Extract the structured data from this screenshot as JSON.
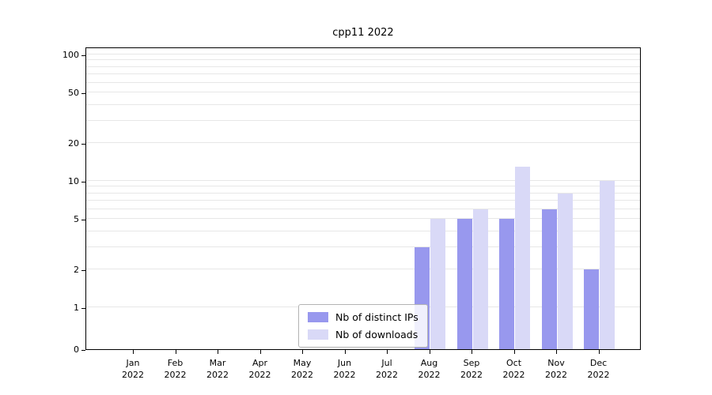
{
  "chart_data": {
    "type": "bar",
    "title": "cpp11 2022",
    "categories": [
      "Jan",
      "Feb",
      "Mar",
      "Apr",
      "May",
      "Jun",
      "Jul",
      "Aug",
      "Sep",
      "Oct",
      "Nov",
      "Dec"
    ],
    "year_label": "2022",
    "series": [
      {
        "name": "Nb of distinct IPs",
        "color": "#9898ee",
        "values": [
          0,
          0,
          0,
          0,
          0,
          0,
          0,
          3,
          5,
          5,
          6,
          2
        ]
      },
      {
        "name": "Nb of downloads",
        "color": "#d9d9f7",
        "values": [
          0,
          0,
          0,
          0,
          0,
          0,
          0,
          5,
          6,
          13,
          8,
          10
        ]
      }
    ],
    "yticks": [
      0,
      1,
      2,
      5,
      10,
      20,
      50,
      100
    ],
    "minor_gridlines": [
      1,
      2,
      3,
      4,
      5,
      6,
      7,
      8,
      9,
      10,
      20,
      30,
      40,
      50,
      60,
      70,
      80,
      90,
      100
    ],
    "scale": "symlog",
    "ylim": [
      0,
      115
    ],
    "grid": "horizontal",
    "legend_position": "bottom-center-inside"
  }
}
